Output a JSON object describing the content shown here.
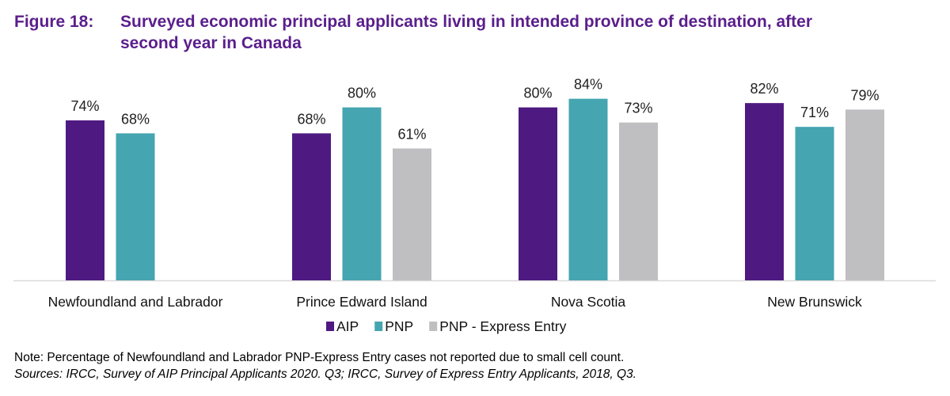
{
  "chart_data": {
    "type": "bar",
    "title_number": "Figure 18:",
    "title": "Surveyed economic principal applicants living in intended province of destination, after second year in Canada",
    "title_line1": "Surveyed economic principal applicants living in intended province of destination, after",
    "title_line2": "second year in Canada",
    "categories": [
      "Newfoundland and Labrador",
      "Prince Edward Island",
      "Nova Scotia",
      "New Brunswick"
    ],
    "series": [
      {
        "name": "AIP",
        "color": "#4E1A82",
        "values": [
          74,
          68,
          80,
          82
        ],
        "labels": [
          "74%",
          "68%",
          "80%",
          "82%"
        ]
      },
      {
        "name": "PNP",
        "color": "#45A5B0",
        "values": [
          68,
          80,
          84,
          71
        ],
        "labels": [
          "68%",
          "80%",
          "84%",
          "71%"
        ]
      },
      {
        "name": "PNP - Express Entry",
        "color": "#BFBFC1",
        "values": [
          null,
          61,
          73,
          79
        ],
        "labels": [
          null,
          "61%",
          "73%",
          "79%"
        ]
      }
    ],
    "ylim": [
      0,
      100
    ],
    "grid": false,
    "legend_position": "bottom",
    "xlabel": "",
    "ylabel": ""
  },
  "note": "Note: Percentage of Newfoundland and Labrador PNP-Express Entry cases not reported due to small cell count.",
  "sources": "Sources: IRCC, Survey of AIP Principal Applicants 2020. Q3; IRCC, Survey of Express Entry Applicants, 2018, Q3."
}
